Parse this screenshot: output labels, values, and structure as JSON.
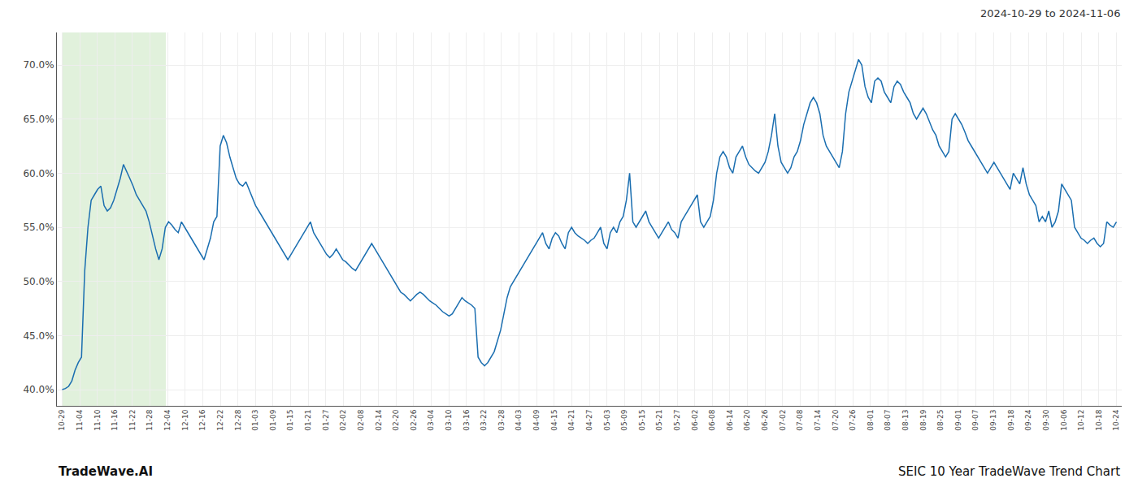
{
  "chart_data": {
    "type": "line",
    "title": "SEIC 10 Year TradeWave Trend Chart",
    "subtitle": "2024-10-29 to 2024-11-06",
    "annotations": [
      "TradeWave.AI"
    ],
    "color": "#1a6eb0",
    "grid": true,
    "highlight_range": [
      0,
      32.16393442622951
    ],
    "highlight_color": "#c8e6c0",
    "xlim": [
      -1.635,
      328.635
    ],
    "xticks": [
      {
        "value": 0,
        "label": "10-29"
      },
      {
        "value": 5.45,
        "label": "11-04"
      },
      {
        "value": 10.9,
        "label": "11-10"
      },
      {
        "value": 16.35,
        "label": "11-16"
      },
      {
        "value": 21.8,
        "label": "11-22"
      },
      {
        "value": 27.25,
        "label": "11-28"
      },
      {
        "value": 32.7,
        "label": "12-04"
      },
      {
        "value": 38.15,
        "label": "12-10"
      },
      {
        "value": 43.6,
        "label": "12-16"
      },
      {
        "value": 49.05,
        "label": "12-22"
      },
      {
        "value": 54.5,
        "label": "12-28"
      },
      {
        "value": 59.95,
        "label": "01-03"
      },
      {
        "value": 65.4,
        "label": "01-09"
      },
      {
        "value": 70.85,
        "label": "01-15"
      },
      {
        "value": 76.3,
        "label": "01-21"
      },
      {
        "value": 81.75,
        "label": "01-27"
      },
      {
        "value": 87.2,
        "label": "02-02"
      },
      {
        "value": 92.65,
        "label": "02-08"
      },
      {
        "value": 98.1,
        "label": "02-14"
      },
      {
        "value": 103.55,
        "label": "02-20"
      },
      {
        "value": 109,
        "label": "02-26"
      },
      {
        "value": 114.45,
        "label": "03-04"
      },
      {
        "value": 119.9,
        "label": "03-10"
      },
      {
        "value": 125.35,
        "label": "03-16"
      },
      {
        "value": 130.8,
        "label": "03-22"
      },
      {
        "value": 136.25,
        "label": "03-28"
      },
      {
        "value": 141.7,
        "label": "04-03"
      },
      {
        "value": 147.15,
        "label": "04-09"
      },
      {
        "value": 152.6,
        "label": "04-15"
      },
      {
        "value": 158.05,
        "label": "04-21"
      },
      {
        "value": 163.5,
        "label": "04-27"
      },
      {
        "value": 168.95,
        "label": "05-03"
      },
      {
        "value": 174.4,
        "label": "05-09"
      },
      {
        "value": 179.85,
        "label": "05-15"
      },
      {
        "value": 185.3,
        "label": "05-21"
      },
      {
        "value": 190.75,
        "label": "05-27"
      },
      {
        "value": 196.2,
        "label": "06-02"
      },
      {
        "value": 201.65,
        "label": "06-08"
      },
      {
        "value": 207.1,
        "label": "06-14"
      },
      {
        "value": 212.55,
        "label": "06-20"
      },
      {
        "value": 218,
        "label": "06-26"
      },
      {
        "value": 223.45,
        "label": "07-02"
      },
      {
        "value": 228.9,
        "label": "07-08"
      },
      {
        "value": 234.35,
        "label": "07-14"
      },
      {
        "value": 239.8,
        "label": "07-20"
      },
      {
        "value": 245.25,
        "label": "07-26"
      },
      {
        "value": 250.7,
        "label": "08-01"
      },
      {
        "value": 256.15,
        "label": "08-07"
      },
      {
        "value": 261.6,
        "label": "08-13"
      },
      {
        "value": 267.05,
        "label": "08-19"
      },
      {
        "value": 272.5,
        "label": "08-25"
      },
      {
        "value": 277.95,
        "label": "09-01"
      },
      {
        "value": 283.4,
        "label": "09-07"
      },
      {
        "value": 288.85,
        "label": "09-13"
      },
      {
        "value": 294.3,
        "label": "09-18"
      },
      {
        "value": 299.75,
        "label": "09-24"
      },
      {
        "value": 305.2,
        "label": "09-30"
      },
      {
        "value": 310.65,
        "label": "10-06"
      },
      {
        "value": 316.1,
        "label": "10-12"
      },
      {
        "value": 321.55,
        "label": "10-18"
      },
      {
        "value": 327,
        "label": "10-24"
      }
    ],
    "ylim": [
      38.5,
      73.0
    ],
    "yticks": [
      {
        "value": 40.0,
        "label": "40.0%"
      },
      {
        "value": 45.0,
        "label": "45.0%"
      },
      {
        "value": 50.0,
        "label": "50.0%"
      },
      {
        "value": 55.0,
        "label": "55.0%"
      },
      {
        "value": 60.0,
        "label": "60.0%"
      },
      {
        "value": 65.0,
        "label": "65.0%"
      },
      {
        "value": 70.0,
        "label": "70.0%"
      }
    ],
    "values": [
      40.0,
      40.1,
      40.3,
      40.8,
      41.8,
      42.5,
      43.0,
      51.0,
      55.0,
      57.5,
      58.0,
      58.5,
      58.8,
      57.0,
      56.5,
      56.8,
      57.5,
      58.5,
      59.5,
      60.8,
      60.2,
      59.5,
      58.8,
      58.0,
      57.5,
      57.0,
      56.5,
      55.5,
      54.2,
      53.0,
      52.0,
      53.0,
      55.0,
      55.5,
      55.2,
      54.8,
      54.5,
      55.5,
      55.0,
      54.5,
      54.0,
      53.5,
      53.0,
      52.5,
      52.0,
      53.0,
      54.0,
      55.5,
      56.0,
      62.5,
      63.5,
      62.8,
      61.5,
      60.5,
      59.5,
      59.0,
      58.8,
      59.2,
      58.5,
      57.8,
      57.0,
      56.5,
      56.0,
      55.5,
      55.0,
      54.5,
      54.0,
      53.5,
      53.0,
      52.5,
      52.0,
      52.5,
      53.0,
      53.5,
      54.0,
      54.5,
      55.0,
      55.5,
      54.5,
      54.0,
      53.5,
      53.0,
      52.5,
      52.2,
      52.5,
      53.0,
      52.5,
      52.0,
      51.8,
      51.5,
      51.2,
      51.0,
      51.5,
      52.0,
      52.5,
      53.0,
      53.5,
      53.0,
      52.5,
      52.0,
      51.5,
      51.0,
      50.5,
      50.0,
      49.5,
      49.0,
      48.8,
      48.5,
      48.2,
      48.5,
      48.8,
      49.0,
      48.8,
      48.5,
      48.2,
      48.0,
      47.8,
      47.5,
      47.2,
      47.0,
      46.8,
      47.0,
      47.5,
      48.0,
      48.5,
      48.2,
      48.0,
      47.8,
      47.5,
      43.0,
      42.5,
      42.2,
      42.5,
      43.0,
      43.5,
      44.5,
      45.5,
      47.0,
      48.5,
      49.5,
      50.0,
      50.5,
      51.0,
      51.5,
      52.0,
      52.5,
      53.0,
      53.5,
      54.0,
      54.5,
      53.5,
      53.0,
      54.0,
      54.5,
      54.2,
      53.5,
      53.0,
      54.5,
      55.0,
      54.5,
      54.2,
      54.0,
      53.8,
      53.5,
      53.8,
      54.0,
      54.5,
      55.0,
      53.5,
      53.0,
      54.5,
      55.0,
      54.5,
      55.5,
      56.0,
      57.5,
      60.0,
      55.5,
      55.0,
      55.5,
      56.0,
      56.5,
      55.5,
      55.0,
      54.5,
      54.0,
      54.5,
      55.0,
      55.5,
      54.8,
      54.5,
      54.0,
      55.5,
      56.0,
      56.5,
      57.0,
      57.5,
      58.0,
      55.5,
      55.0,
      55.5,
      56.0,
      57.5,
      60.0,
      61.5,
      62.0,
      61.5,
      60.5,
      60.0,
      61.5,
      62.0,
      62.5,
      61.5,
      60.8,
      60.5,
      60.2,
      60.0,
      60.5,
      61.0,
      62.0,
      63.5,
      65.5,
      62.5,
      61.0,
      60.5,
      60.0,
      60.5,
      61.5,
      62.0,
      63.0,
      64.5,
      65.5,
      66.5,
      67.0,
      66.5,
      65.5,
      63.5,
      62.5,
      62.0,
      61.5,
      61.0,
      60.5,
      62.0,
      65.5,
      67.5,
      68.5,
      69.5,
      70.5,
      70.0,
      68.0,
      67.0,
      66.5,
      68.5,
      68.8,
      68.5,
      67.5,
      67.0,
      66.5,
      68.0,
      68.5,
      68.2,
      67.5,
      67.0,
      66.5,
      65.5,
      65.0,
      65.5,
      66.0,
      65.5,
      64.8,
      64.0,
      63.5,
      62.5,
      62.0,
      61.5,
      62.0,
      65.0,
      65.5,
      65.0,
      64.5,
      63.8,
      63.0,
      62.5,
      62.0,
      61.5,
      61.0,
      60.5,
      60.0,
      60.5,
      61.0,
      60.5,
      60.0,
      59.5,
      59.0,
      58.5,
      60.0,
      59.5,
      59.0,
      60.5,
      59.0,
      58.0,
      57.5,
      57.0,
      55.5,
      56.0,
      55.5,
      56.5,
      55.0,
      55.5,
      56.5,
      59.0,
      58.5,
      58.0,
      57.5,
      55.0,
      54.5,
      54.0,
      53.8,
      53.5,
      53.8,
      54.0,
      53.5,
      53.2,
      53.5,
      55.5,
      55.2,
      55.0,
      55.5
    ]
  }
}
